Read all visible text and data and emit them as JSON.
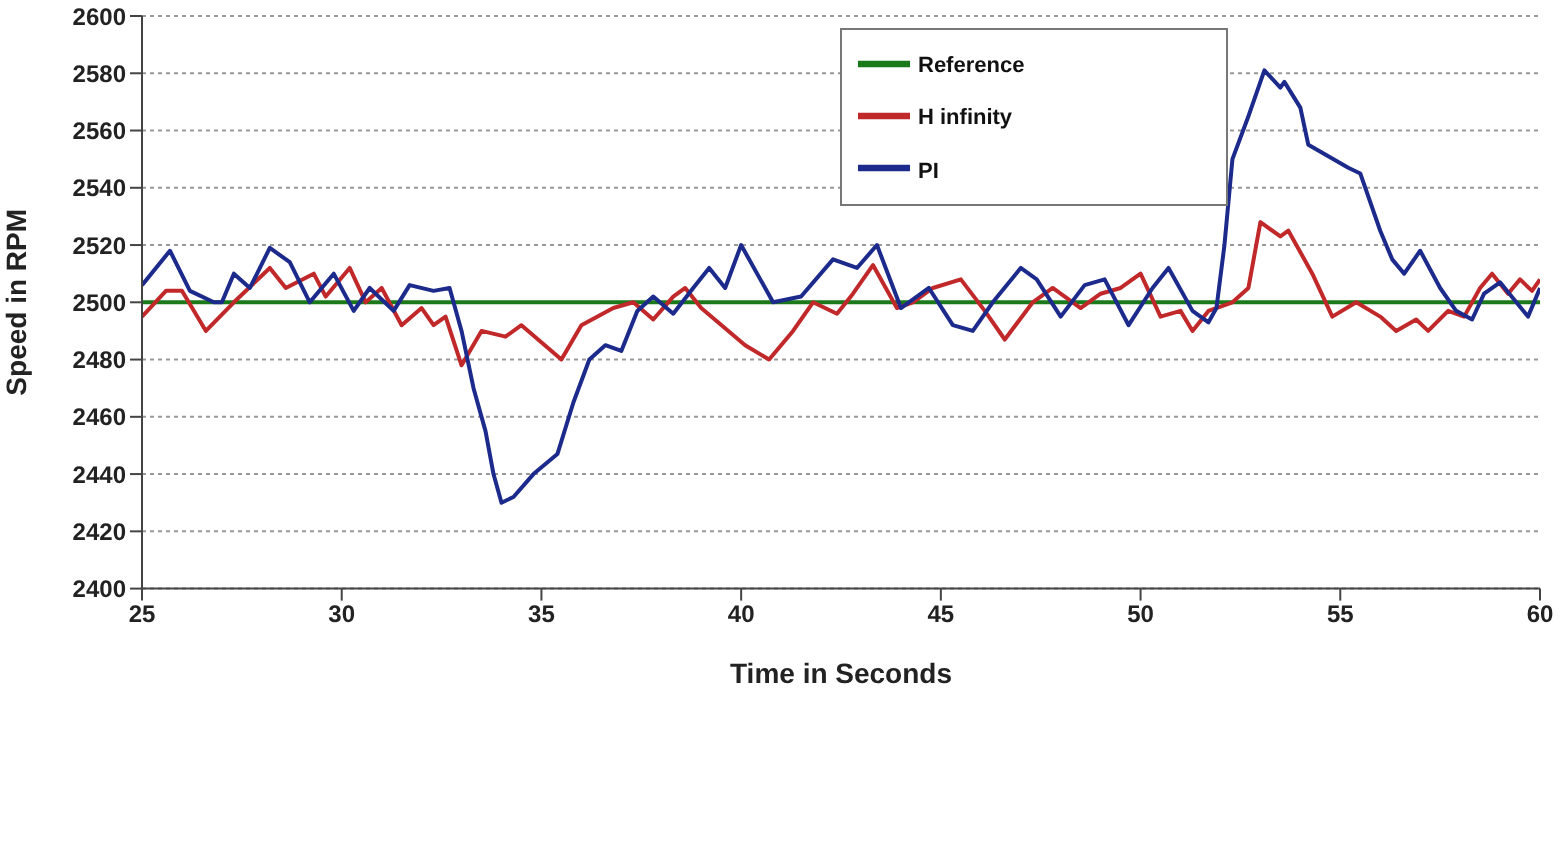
{
  "chart_data": {
    "type": "line",
    "xlabel": "Time in Seconds",
    "ylabel": "Speed in RPM",
    "xlim": [
      25,
      60
    ],
    "xticks": [
      25,
      30,
      35,
      40,
      45,
      50,
      55,
      60
    ],
    "ylim": [
      2400,
      2600
    ],
    "yticks": [
      2400,
      2420,
      2440,
      2460,
      2480,
      2500,
      2520,
      2540,
      2560,
      2580,
      2600
    ],
    "grid": "y",
    "legend": "top right",
    "line_style": "solid",
    "marker": "none",
    "series": [
      {
        "name": "Reference",
        "color": "#1a7a1a",
        "x": [
          25,
          60
        ],
        "values": [
          2500,
          2500
        ]
      },
      {
        "name": "H infinity",
        "color": "#c0282a",
        "x": [
          25,
          25.6,
          26,
          26.6,
          27.3,
          28.2,
          28.6,
          29.3,
          29.6,
          30.2,
          30.6,
          31,
          31.5,
          32,
          32.3,
          32.6,
          33,
          33.5,
          34.1,
          34.5,
          35.5,
          36,
          36.8,
          37.3,
          37.8,
          38.3,
          38.6,
          39,
          40.1,
          40.7,
          41.3,
          41.8,
          42.4,
          42.8,
          43.3,
          43.9,
          44.3,
          44.8,
          45.5,
          46.1,
          46.6,
          47.3,
          47.8,
          48.5,
          49,
          49.5,
          50,
          50.5,
          51,
          51.3,
          51.7,
          52.3,
          52.7,
          53,
          53.5,
          53.7,
          54.3,
          54.8,
          55.4,
          56,
          56.4,
          56.9,
          57.2,
          57.7,
          58.1,
          58.5,
          58.8,
          59.2,
          59.5,
          59.8,
          60
        ],
        "values": [
          2495,
          2504,
          2504,
          2490,
          2500,
          2512,
          2505,
          2510,
          2502,
          2512,
          2500,
          2505,
          2492,
          2498,
          2492,
          2495,
          2478,
          2490,
          2488,
          2492,
          2480,
          2492,
          2498,
          2500,
          2494,
          2502,
          2505,
          2498,
          2485,
          2480,
          2490,
          2500,
          2496,
          2503,
          2513,
          2498,
          2500,
          2505,
          2508,
          2497,
          2487,
          2500,
          2505,
          2498,
          2503,
          2505,
          2510,
          2495,
          2497,
          2490,
          2497,
          2500,
          2505,
          2528,
          2523,
          2525,
          2510,
          2495,
          2500,
          2495,
          2490,
          2494,
          2490,
          2497,
          2495,
          2505,
          2510,
          2503,
          2508,
          2504,
          2508
        ]
      },
      {
        "name": "PI",
        "color": "#1c2a8c",
        "x": [
          25,
          25.7,
          26.2,
          26.8,
          27,
          27.3,
          27.7,
          28.2,
          28.7,
          29.2,
          29.8,
          30.3,
          30.7,
          31.3,
          31.7,
          32.3,
          32.7,
          33,
          33.3,
          33.6,
          33.8,
          34,
          34.3,
          34.8,
          35.4,
          35.8,
          36.2,
          36.6,
          37,
          37.4,
          37.8,
          38.3,
          38.8,
          39.2,
          39.6,
          40,
          40.8,
          41.5,
          42.3,
          42.9,
          43.4,
          44,
          44.7,
          45.3,
          45.8,
          46.3,
          47,
          47.4,
          48,
          48.6,
          49.1,
          49.7,
          50.3,
          50.7,
          51.3,
          51.7,
          51.9,
          52.1,
          52.3,
          52.7,
          53.1,
          53.5,
          53.6,
          54,
          54.2,
          55.2,
          55.5,
          56,
          56.3,
          56.6,
          57,
          57.5,
          57.9,
          58.3,
          58.6,
          59,
          59.7,
          60
        ],
        "values": [
          2506,
          2518,
          2504,
          2500,
          2500,
          2510,
          2505,
          2519,
          2514,
          2500,
          2510,
          2497,
          2505,
          2497,
          2506,
          2504,
          2505,
          2490,
          2470,
          2455,
          2440,
          2430,
          2432,
          2440,
          2447,
          2465,
          2480,
          2485,
          2483,
          2497,
          2502,
          2496,
          2505,
          2512,
          2505,
          2520,
          2500,
          2502,
          2515,
          2512,
          2520,
          2498,
          2505,
          2492,
          2490,
          2500,
          2512,
          2508,
          2495,
          2506,
          2508,
          2492,
          2505,
          2512,
          2497,
          2493,
          2498,
          2520,
          2550,
          2565,
          2581,
          2575,
          2577,
          2568,
          2555,
          2547,
          2545,
          2525,
          2515,
          2510,
          2518,
          2505,
          2497,
          2494,
          2503,
          2507,
          2495,
          2505
        ]
      }
    ]
  }
}
